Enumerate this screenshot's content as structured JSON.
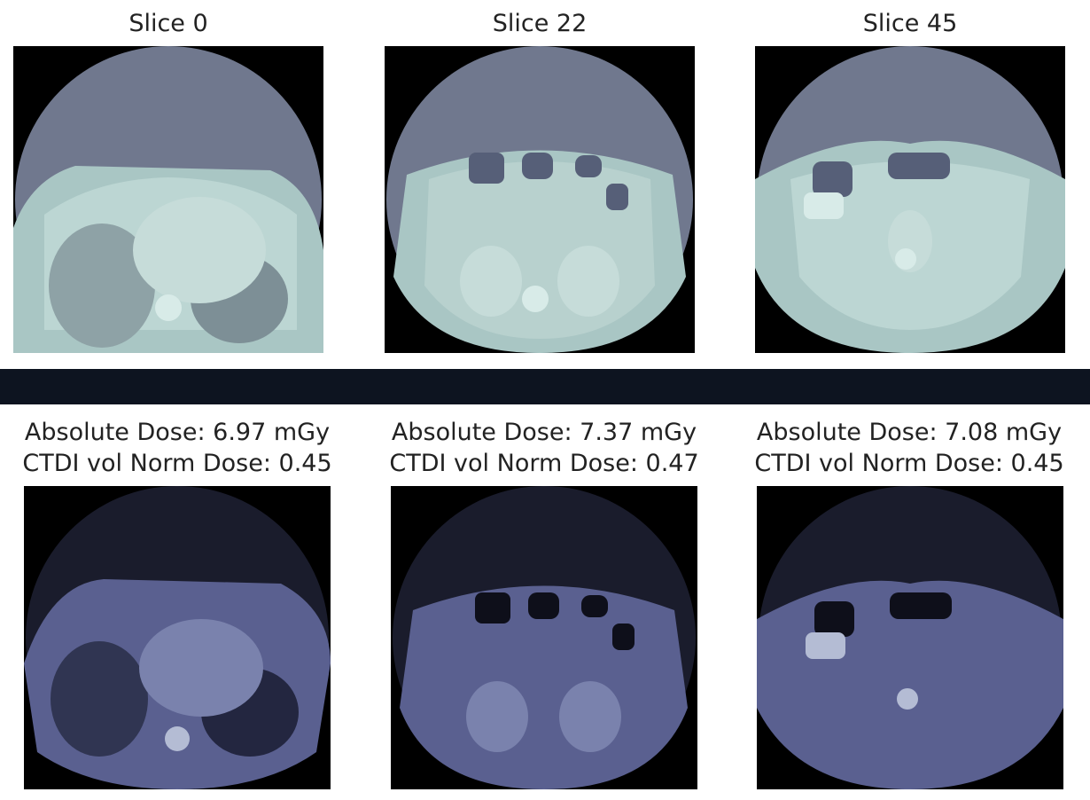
{
  "top_row": {
    "panels": [
      {
        "title": "Slice 0",
        "image": "ct-slice-thorax"
      },
      {
        "title": "Slice 22",
        "image": "ct-slice-upper-abdomen"
      },
      {
        "title": "Slice 45",
        "image": "ct-slice-lower-abdomen"
      }
    ]
  },
  "bottom_row": {
    "panels": [
      {
        "line1": "Absolute Dose: 6.97 mGy",
        "line2": "CTDI vol Norm Dose: 0.45",
        "image": "dose-map-slice-0"
      },
      {
        "line1": "Absolute Dose: 7.37 mGy",
        "line2": "CTDI vol Norm Dose: 0.47",
        "image": "dose-map-slice-22"
      },
      {
        "line1": "Absolute Dose: 7.08 mGy",
        "line2": "CTDI vol Norm Dose: 0.45",
        "image": "dose-map-slice-45"
      }
    ]
  },
  "colors": {
    "ct_background": "#70788e",
    "ct_body": "#a9c6c4",
    "ct_tissue": "#bcd6d3",
    "ct_air": "#5f6883",
    "dose_background": "#1a1c2c",
    "dose_body": "#5a6090",
    "dose_tissue": "#7a82ad",
    "band": "#0d1420"
  }
}
